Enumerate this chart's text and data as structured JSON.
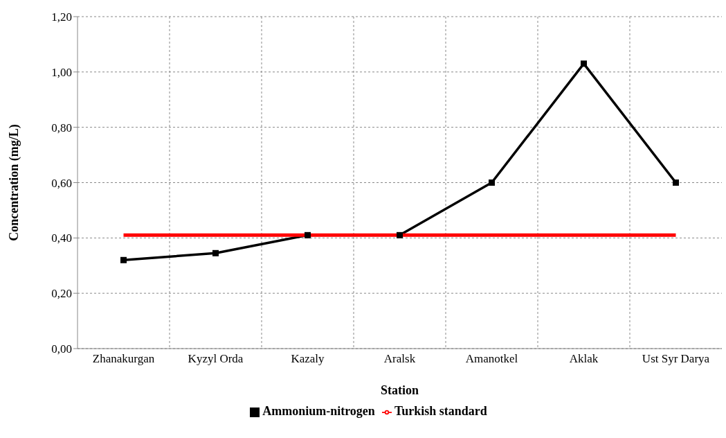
{
  "chart_data": {
    "type": "line",
    "xlabel": "Station",
    "ylabel": "Concentration (mg/L)",
    "categories": [
      "Zhanakurgan",
      "Kyzyl Orda",
      "Kazaly",
      "Aralsk",
      "Amanotkel",
      "Aklak",
      "Ust Syr Darya"
    ],
    "series": [
      {
        "name": "Ammonium-nitrogen",
        "color": "#000000",
        "marker": "square",
        "values": [
          0.32,
          0.345,
          0.41,
          0.41,
          0.6,
          1.03,
          0.6
        ]
      },
      {
        "name": "Turkish standard",
        "color": "#ff0000",
        "marker": "none",
        "values": [
          0.41,
          0.41,
          0.41,
          0.41,
          0.41,
          0.41,
          0.41
        ]
      }
    ],
    "ylim": [
      0,
      1.2
    ],
    "yticks": [
      {
        "value": 0,
        "label": "0,00"
      },
      {
        "value": 0.2,
        "label": "0,20"
      },
      {
        "value": 0.4,
        "label": "0,40"
      },
      {
        "value": 0.6,
        "label": "0,60"
      },
      {
        "value": 0.8,
        "label": "0,80"
      },
      {
        "value": 1,
        "label": "1,00"
      },
      {
        "value": 1.2,
        "label": "1,20"
      }
    ],
    "grid": true,
    "legend": "bottom",
    "line_style": "solid"
  }
}
